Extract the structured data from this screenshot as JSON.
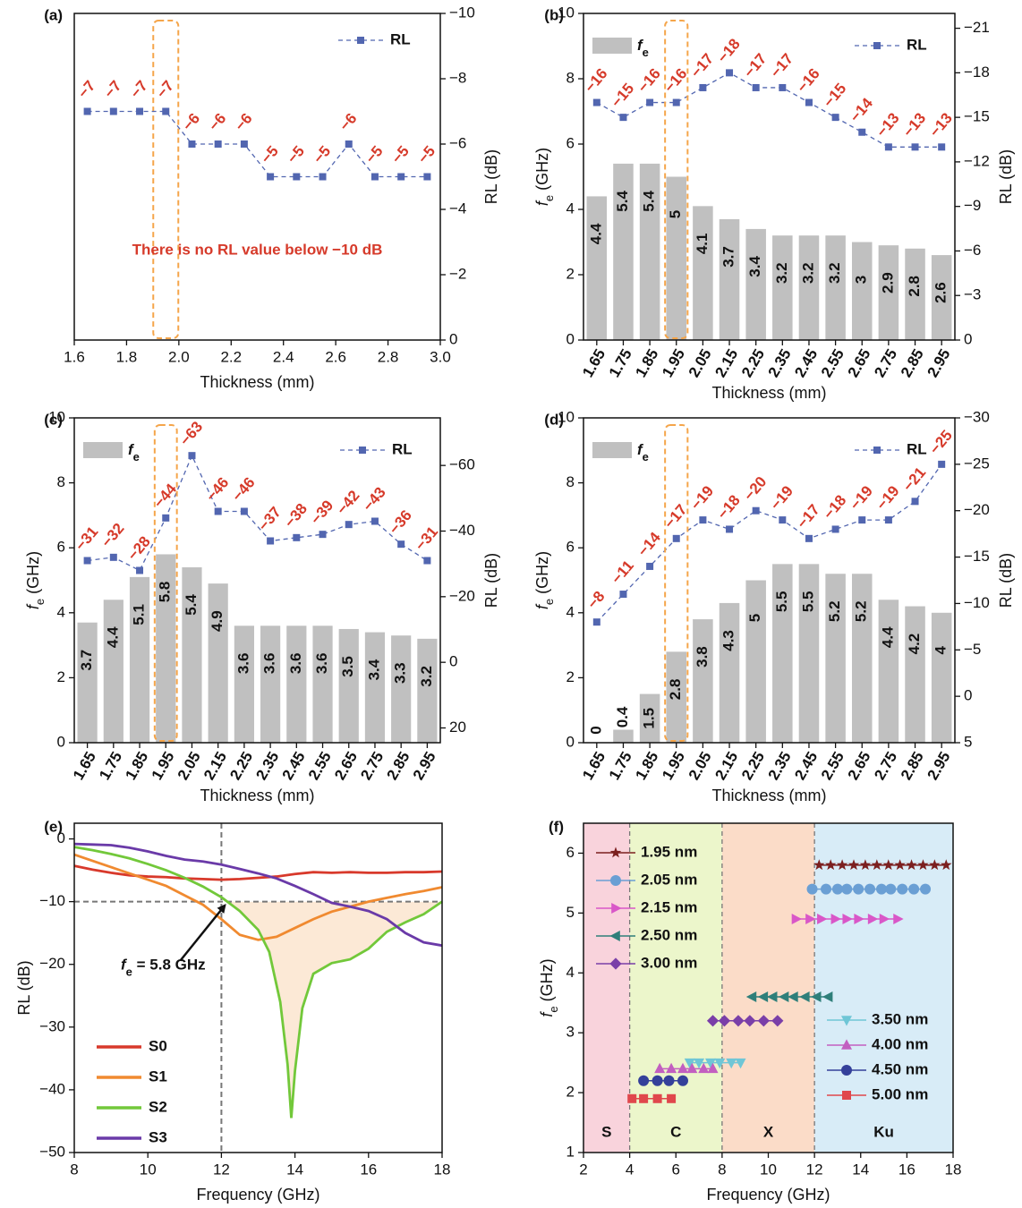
{
  "chart_data": [
    {
      "type": "line",
      "panel_label": "(a)",
      "xlabel": "Thickness (mm)",
      "ylabel": "RL (dB)",
      "yaxis_side": "right",
      "x": [
        1.65,
        1.75,
        1.85,
        1.95,
        2.05,
        2.15,
        2.25,
        2.35,
        2.45,
        2.55,
        2.65,
        2.75,
        2.85,
        2.95
      ],
      "series": [
        {
          "name": "RL",
          "color": "#5266b0",
          "linestyle": "dashed",
          "marker": "square",
          "values": [
            -7,
            -7,
            -7,
            -7,
            -6,
            -6,
            -6,
            -5,
            -5,
            -5,
            -6,
            -5,
            -5,
            -5
          ],
          "value_labels": [
            "−7",
            "−7",
            "−7",
            "−7",
            "−6",
            "−6",
            "−6",
            "−5",
            "−5",
            "−5",
            "−6",
            "−5",
            "−5",
            "−5"
          ]
        }
      ],
      "label_color": "#d63a2a",
      "xlim": [
        1.6,
        3.0
      ],
      "xticks": [
        1.6,
        1.8,
        {
          "value": 2,
          "label": "2.0"
        },
        2.2,
        2.4,
        2.6,
        2.8,
        {
          "value": 3,
          "label": "3.0"
        }
      ],
      "ylim": [
        0,
        -10
      ],
      "yticks": [
        {
          "value": -10,
          "label": "−10"
        },
        {
          "value": -8,
          "label": "−8"
        },
        {
          "value": -6,
          "label": "−6"
        },
        {
          "value": -4,
          "label": "−4"
        },
        {
          "value": -2,
          "label": "−2"
        },
        0
      ],
      "annotation": "There is no RL value below −10 dB",
      "highlight_index": 3,
      "legend": "upper right"
    },
    {
      "type": "bar_line",
      "panel_label": "(b)",
      "xlabel": "Thickness (mm)",
      "ylabel": {
        "text": "f",
        "sub": "e",
        "rest": " (GHz)"
      },
      "y2label": "RL (dB)",
      "categories": [
        "1.65",
        "1.75",
        "1.85",
        "1.95",
        "2.05",
        "2.15",
        "2.25",
        "2.35",
        "2.45",
        "2.55",
        "2.65",
        "2.75",
        "2.85",
        "2.95"
      ],
      "series": [
        {
          "name": {
            "text": "f",
            "sub": "e"
          },
          "color": "#c0c0c0",
          "values": [
            4.4,
            5.4,
            5.4,
            5,
            4.1,
            3.7,
            3.4,
            3.2,
            3.2,
            3.2,
            3,
            2.9,
            2.8,
            2.6
          ]
        },
        {
          "name": "RL",
          "color": "#5266b0",
          "axis": "y2",
          "linestyle": "dashed",
          "marker": "square",
          "values": [
            -16,
            -15,
            -16,
            -16,
            -17,
            -18,
            -17,
            -17,
            -16,
            -15,
            -14,
            -13,
            -13,
            -13
          ],
          "value_labels": [
            "−16",
            "−15",
            "−16",
            "−16",
            "−17",
            "−18",
            "−17",
            "−17",
            "−16",
            "−15",
            "−14",
            "−13",
            "−13",
            "−13"
          ]
        }
      ],
      "label_color": "#d63a2a",
      "ylim": [
        0,
        10
      ],
      "yticks": [
        0,
        2,
        4,
        6,
        8,
        10
      ],
      "y2lim": [
        0,
        -22
      ],
      "y2ticks": [
        {
          "value": -21,
          "label": "−21"
        },
        {
          "value": -18,
          "label": "−18"
        },
        {
          "value": -15,
          "label": "−15"
        },
        {
          "value": -12,
          "label": "−12"
        },
        {
          "value": -9,
          "label": "−9"
        },
        {
          "value": -6,
          "label": "−6"
        },
        {
          "value": -3,
          "label": "−3"
        },
        0
      ],
      "highlight_index": 3
    },
    {
      "type": "bar_line",
      "panel_label": "(c)",
      "xlabel": "Thickness (mm)",
      "ylabel": {
        "text": "f",
        "sub": "e",
        "rest": " (GHz)"
      },
      "y2label": "RL (dB)",
      "categories": [
        "1.65",
        "1.75",
        "1.85",
        "1.95",
        "2.05",
        "2.15",
        "2.25",
        "2.35",
        "2.45",
        "2.55",
        "2.65",
        "2.75",
        "2.85",
        "2.95"
      ],
      "series": [
        {
          "name": {
            "text": "f",
            "sub": "e"
          },
          "color": "#c0c0c0",
          "values": [
            3.7,
            4.4,
            5.1,
            5.8,
            5.4,
            4.9,
            3.6,
            3.6,
            3.6,
            3.6,
            3.5,
            3.4,
            3.3,
            3.2
          ]
        },
        {
          "name": "RL",
          "color": "#5266b0",
          "axis": "y2",
          "linestyle": "dashed",
          "marker": "square",
          "values": [
            -31,
            -32,
            -28,
            -44,
            -63,
            -46,
            -46,
            -37,
            -38,
            -39,
            -42,
            -43,
            -36,
            -31
          ],
          "value_labels": [
            "−31",
            "−32",
            "−28",
            "−44",
            "−63",
            "−46",
            "−46",
            "−37",
            "−38",
            "−39",
            "−42",
            "−43",
            "−36",
            "−31"
          ]
        }
      ],
      "label_color": "#d63a2a",
      "ylim": [
        0,
        10
      ],
      "yticks": [
        0,
        2,
        4,
        6,
        8,
        10
      ],
      "y2lim": [
        24.5,
        -74.5
      ],
      "y2ticks": [
        {
          "value": -60,
          "label": "−60"
        },
        {
          "value": -40,
          "label": "−40"
        },
        {
          "value": -20,
          "label": "−20"
        },
        0,
        20
      ],
      "highlight_index": 3
    },
    {
      "type": "bar_line",
      "panel_label": "(d)",
      "xlabel": "Thickness (mm)",
      "ylabel": {
        "text": "f",
        "sub": "e",
        "rest": " (GHz)"
      },
      "y2label": "RL (dB)",
      "categories": [
        "1.65",
        "1.75",
        "1.85",
        "1.95",
        "2.05",
        "2.15",
        "2.25",
        "2.35",
        "2.45",
        "2.55",
        "2.65",
        "2.75",
        "2.85",
        "2.95"
      ],
      "series": [
        {
          "name": {
            "text": "f",
            "sub": "e"
          },
          "color": "#c0c0c0",
          "values": [
            0,
            0.4,
            1.5,
            2.8,
            3.8,
            4.3,
            5,
            5.5,
            5.5,
            5.2,
            5.2,
            4.4,
            4.2,
            4
          ]
        },
        {
          "name": "RL",
          "color": "#5266b0",
          "axis": "y2",
          "linestyle": "dashed",
          "marker": "square",
          "values": [
            -8,
            -11,
            -14,
            -17,
            -19,
            -18,
            -20,
            -19,
            -17,
            -18,
            -19,
            -19,
            -21,
            -25
          ],
          "value_labels": [
            "−8",
            "−11",
            "−14",
            "−17",
            "−19",
            "−18",
            "−20",
            "−19",
            "−17",
            "−18",
            "−19",
            "−19",
            "−21",
            "−25"
          ]
        }
      ],
      "label_color": "#d63a2a",
      "ylim": [
        0,
        10
      ],
      "yticks": [
        0,
        2,
        4,
        6,
        8,
        10
      ],
      "y2lim": [
        5,
        -30
      ],
      "y2ticks": [
        {
          "value": -30,
          "label": "−30"
        },
        {
          "value": -25,
          "label": "−25"
        },
        {
          "value": -20,
          "label": "−20"
        },
        {
          "value": -15,
          "label": "−15"
        },
        {
          "value": -10,
          "label": "−10"
        },
        {
          "value": -5,
          "label": "−5"
        },
        0,
        5
      ],
      "highlight_index": 3
    },
    {
      "type": "line",
      "panel_label": "(e)",
      "xlabel": "Frequency (GHz)",
      "ylabel": "RL (dB)",
      "series": [
        {
          "name": "S0",
          "color": "#d8392b",
          "x": [
            8,
            8.5,
            9,
            9.5,
            10,
            10.5,
            11,
            11.5,
            12,
            12.5,
            13,
            13.5,
            14,
            14.5,
            15,
            15.5,
            16,
            16.5,
            17,
            17.5,
            18
          ],
          "values": [
            -4.3,
            -4.9,
            -5.4,
            -5.8,
            -6,
            -6.1,
            -6.3,
            -6.4,
            -6.5,
            -6.4,
            -6.2,
            -6,
            -5.6,
            -5.3,
            -5.4,
            -5.3,
            -5.4,
            -5.4,
            -5.3,
            -5.3,
            -5.2
          ]
        },
        {
          "name": "S1",
          "color": "#f08a30",
          "x": [
            8,
            8.5,
            9,
            9.5,
            10,
            10.5,
            11,
            11.5,
            12,
            12.5,
            13,
            13.5,
            14,
            14.5,
            15,
            15.5,
            16,
            16.5,
            17,
            17.5,
            18
          ],
          "values": [
            -2.5,
            -3.5,
            -4.5,
            -5.5,
            -6.5,
            -7.5,
            -9,
            -10.5,
            -12.8,
            -15.3,
            -16.1,
            -15.6,
            -14.2,
            -12.8,
            -11.6,
            -10.8,
            -10,
            -9.4,
            -8.8,
            -8.3,
            -7.7
          ]
        },
        {
          "name": "S2",
          "color": "#72c83a",
          "x": [
            8,
            8.5,
            9,
            9.5,
            10,
            10.5,
            11,
            11.5,
            12,
            12.5,
            13,
            13.3,
            13.6,
            13.8,
            13.9,
            14,
            14.2,
            14.5,
            15,
            15.5,
            16,
            16.5,
            17,
            17.5,
            18
          ],
          "values": [
            -1.3,
            -1.8,
            -2.4,
            -3.1,
            -4,
            -5,
            -6.2,
            -7.6,
            -9.3,
            -11.5,
            -14.5,
            -18,
            -26,
            -36,
            -44.5,
            -37,
            -27,
            -21.5,
            -19.8,
            -19.2,
            -17.5,
            -14.8,
            -13.3,
            -12,
            -10
          ]
        },
        {
          "name": "S3",
          "color": "#6a3aa8",
          "x": [
            8,
            8.5,
            9,
            9.5,
            10,
            10.5,
            11,
            11.5,
            12,
            12.5,
            13,
            13.5,
            14,
            14.5,
            15,
            15.5,
            16,
            16.5,
            17,
            17.5,
            18
          ],
          "values": [
            -0.8,
            -0.9,
            -1,
            -1.4,
            -2,
            -2.7,
            -3.3,
            -3.6,
            -4.1,
            -4.8,
            -5.5,
            -6.3,
            -7.5,
            -8.8,
            -10.2,
            -10.8,
            -11.5,
            -12.8,
            -15,
            -16.5,
            -17
          ]
        }
      ],
      "xlim": [
        8,
        18
      ],
      "xticks": [
        8,
        10,
        12,
        14,
        16,
        18
      ],
      "ylim": [
        -50,
        2.5
      ],
      "yticks": [
        0,
        {
          "value": -10,
          "label": "−10"
        },
        {
          "value": -20,
          "label": "−20"
        },
        {
          "value": -30,
          "label": "−30"
        },
        {
          "value": -40,
          "label": "−40"
        },
        {
          "value": -50,
          "label": "−50"
        }
      ],
      "vline": 12,
      "hline": -10,
      "fill_series": 2,
      "fill_color": "#fce9d6",
      "annotation": {
        "text": "f",
        "sub": "e",
        "rest": " = 5.8 GHz"
      },
      "legend": "lower left"
    },
    {
      "type": "scatter",
      "panel_label": "(f)",
      "xlabel": "Frequency (GHz)",
      "ylabel": {
        "text": "f",
        "sub": "e",
        "rest": " (GHz)"
      },
      "bands": [
        {
          "label": "S",
          "range": [
            2,
            4
          ],
          "color": "#f9d3dc"
        },
        {
          "label": "C",
          "range": [
            4,
            8
          ],
          "color": "#ecf6cb"
        },
        {
          "label": "X",
          "range": [
            8,
            12
          ],
          "color": "#fbdcc8"
        },
        {
          "label": "Ku",
          "range": [
            12,
            18
          ],
          "color": "#d8ecf7"
        }
      ],
      "series": [
        {
          "name": "1.95 nm",
          "color": "#7b1f1f",
          "marker": "star",
          "x": [
            12.2,
            12.7,
            13.2,
            13.7,
            14.2,
            14.7,
            15.2,
            15.7,
            16.2,
            16.7,
            17.2,
            17.7
          ],
          "y": [
            5.8,
            5.8,
            5.8,
            5.8,
            5.8,
            5.8,
            5.8,
            5.8,
            5.8,
            5.8,
            5.8,
            5.8
          ]
        },
        {
          "name": "2.05 nm",
          "color": "#6a9fd4",
          "marker": "circle",
          "x": [
            11.9,
            12.5,
            13,
            13.4,
            13.9,
            14.4,
            14.9,
            15.3,
            15.8,
            16.3,
            16.8
          ],
          "y": [
            5.4,
            5.4,
            5.4,
            5.4,
            5.4,
            5.4,
            5.4,
            5.4,
            5.4,
            5.4,
            5.4
          ]
        },
        {
          "name": "2.15 nm",
          "color": "#d957c8",
          "marker": "triangle-right",
          "x": [
            11.2,
            11.8,
            12.3,
            12.9,
            13.4,
            13.9,
            14.5,
            15,
            15.6
          ],
          "y": [
            4.9,
            4.9,
            4.9,
            4.9,
            4.9,
            4.9,
            4.9,
            4.9,
            4.9
          ]
        },
        {
          "name": "2.50 nm",
          "color": "#2f7f7a",
          "marker": "triangle-left",
          "x": [
            9.3,
            9.8,
            10.2,
            10.7,
            11.1,
            11.6,
            12.1,
            12.6
          ],
          "y": [
            3.6,
            3.6,
            3.6,
            3.6,
            3.6,
            3.6,
            3.6,
            3.6
          ]
        },
        {
          "name": "3.00 nm",
          "color": "#7a3fa8",
          "marker": "diamond",
          "x": [
            7.6,
            8.1,
            8.7,
            9.2,
            9.8,
            10.4
          ],
          "y": [
            3.2,
            3.2,
            3.2,
            3.2,
            3.2,
            3.2
          ]
        },
        {
          "name": "3.50 nm",
          "color": "#6fc6d6",
          "marker": "triangle-down",
          "x": [
            6.6,
            7,
            7.5,
            7.9,
            8.4,
            8.8
          ],
          "y": [
            2.5,
            2.5,
            2.5,
            2.5,
            2.5,
            2.5
          ]
        },
        {
          "name": "4.00 nm",
          "color": "#c25fc0",
          "marker": "triangle-up",
          "x": [
            5.3,
            5.8,
            6.3,
            6.7,
            7.2,
            7.6
          ],
          "y": [
            2.4,
            2.4,
            2.4,
            2.4,
            2.4,
            2.4
          ]
        },
        {
          "name": "4.50 nm",
          "color": "#34409a",
          "marker": "circle",
          "x": [
            4.6,
            5.2,
            5.7,
            6.3
          ],
          "y": [
            2.2,
            2.2,
            2.2,
            2.2
          ]
        },
        {
          "name": "5.00 nm",
          "color": "#e0474c",
          "marker": "square",
          "x": [
            4.1,
            4.6,
            5.2,
            5.8
          ],
          "y": [
            1.9,
            1.9,
            1.9,
            1.9
          ]
        }
      ],
      "xlim": [
        2,
        18
      ],
      "xticks": [
        2,
        4,
        6,
        8,
        10,
        12,
        14,
        16,
        18
      ],
      "ylim": [
        1,
        6.5
      ],
      "yticks": [
        1,
        2,
        3,
        4,
        5,
        6
      ]
    }
  ]
}
